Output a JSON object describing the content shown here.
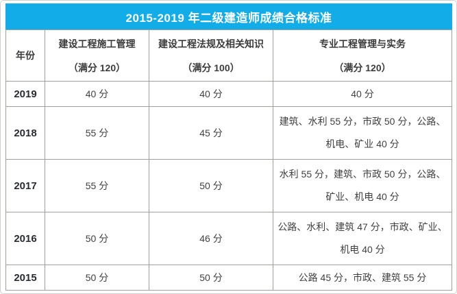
{
  "title": "2015-2019 年二级建造师成绩合格标准",
  "colors": {
    "title_background": "#12ace8",
    "title_text": "#ffffff",
    "table_border": "#9f9f99",
    "outer_border": "#cfcfcb",
    "year_text": "#272b33",
    "cell_text": "#3f3f3f"
  },
  "table": {
    "header": {
      "year": "年份",
      "columns": [
        {
          "name": "建设工程施工管理",
          "full_score": "（满分 120）"
        },
        {
          "name": "建设工程法规及相关知识",
          "full_score": "（满分 100）"
        },
        {
          "name": "专业工程管理与实务",
          "full_score": "（满分 120）"
        }
      ]
    },
    "rows": [
      {
        "year": "2019",
        "management": "40 分",
        "regulations": "40 分",
        "practice": "40 分"
      },
      {
        "year": "2018",
        "management": "55 分",
        "regulations": "45 分",
        "practice": "建筑、水利 55 分，市政 50 分，公路、机电、矿业 40 分"
      },
      {
        "year": "2017",
        "management": "55 分",
        "regulations": "50 分",
        "practice": "水利 55 分，建筑、市政 50 分，公路、矿业、机电 40 分"
      },
      {
        "year": "2016",
        "management": "50 分",
        "regulations": "46 分",
        "practice": "公路、水利、建筑 47 分，市政、矿业、机电 40 分"
      },
      {
        "year": "2015",
        "management": "50 分",
        "regulations": "50 分",
        "practice": "公路 45 分，市政、建筑 55 分"
      }
    ]
  },
  "chart_data": {
    "type": "table",
    "title": "2015-2019 年二级建造师成绩合格标准",
    "columns": [
      "年份",
      "建设工程施工管理（满分 120）",
      "建设工程法规及相关知识（满分 100）",
      "专业工程管理与实务（满分 120）"
    ],
    "rows": [
      [
        "2019",
        "40 分",
        "40 分",
        "40 分"
      ],
      [
        "2018",
        "55 分",
        "45 分",
        "建筑、水利 55 分，市政 50 分，公路、机电、矿业 40 分"
      ],
      [
        "2017",
        "55 分",
        "50 分",
        "水利 55 分，建筑、市政 50 分，公路、矿业、机电 40 分"
      ],
      [
        "2016",
        "50 分",
        "46 分",
        "公路、水利、建筑 47 分，市政、矿业、机电 40 分"
      ],
      [
        "2015",
        "50 分",
        "50 分",
        "公路 45 分，市政、建筑 55 分"
      ]
    ]
  }
}
